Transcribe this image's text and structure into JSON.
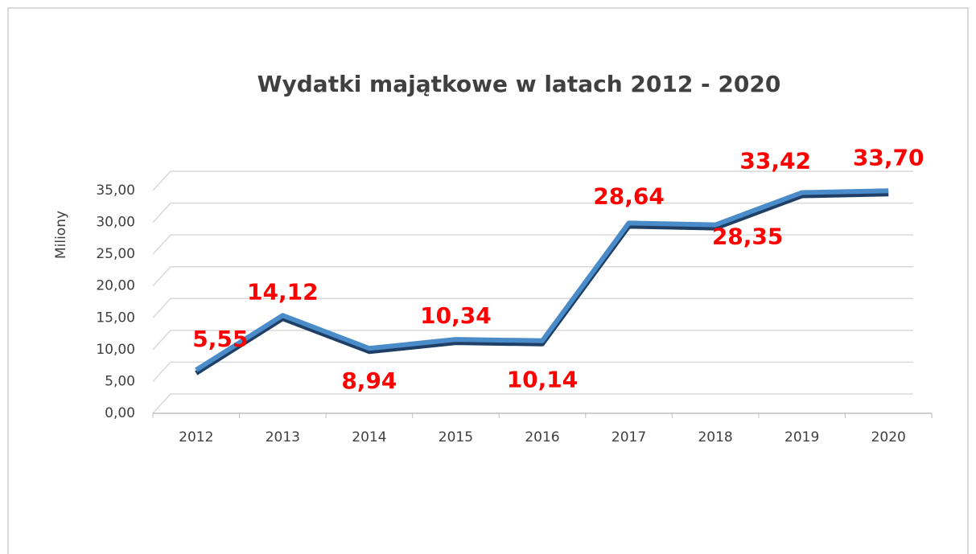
{
  "chart_data": {
    "type": "line",
    "title": "Wydatki majątkowe w latach 2012 - 2020",
    "y_label": "Miliony",
    "categories": [
      "2012",
      "2013",
      "2014",
      "2015",
      "2016",
      "2017",
      "2018",
      "2019",
      "2020"
    ],
    "values": [
      5.55,
      14.12,
      8.94,
      10.34,
      10.14,
      28.64,
      28.35,
      33.42,
      33.7
    ],
    "value_labels": [
      "5,55",
      "14,12",
      "8,94",
      "10,34",
      "10,14",
      "28,64",
      "28,35",
      "33,42",
      "33,70"
    ],
    "color": "#4a8bc9",
    "ylim": [
      0,
      35
    ],
    "yticks": [
      {
        "value": 0,
        "label": "0,00"
      },
      {
        "value": 5,
        "label": "5,00"
      },
      {
        "value": 10,
        "label": "10,00"
      },
      {
        "value": 15,
        "label": "15,00"
      },
      {
        "value": 20,
        "label": "20,00"
      },
      {
        "value": 25,
        "label": "25,00"
      },
      {
        "value": 30,
        "label": "30,00"
      },
      {
        "value": 35,
        "label": "35,00"
      }
    ],
    "grid": true
  }
}
